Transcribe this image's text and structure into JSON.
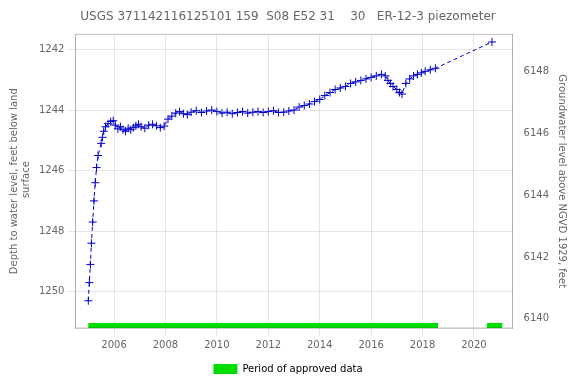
{
  "chart_data": {
    "type": "line",
    "title": "USGS 371142116125101 159  S08 E52 31    30   ER-12-3 piezometer",
    "ylabel": "Depth to water level, feet below land\n surface",
    "y2label": "Groundwater level above NGVD 1929, feet",
    "xlim": [
      2004.5,
      2021.5
    ],
    "xticks": [
      2006,
      2008,
      2010,
      2012,
      2014,
      2016,
      2018,
      2020
    ],
    "ylim": [
      1251.2,
      1241.5
    ],
    "yticks": [
      1242,
      1244,
      1246,
      1248,
      1250
    ],
    "y2lim": [
      6139.7,
      6149.2
    ],
    "y2ticks": [
      6140,
      6142,
      6144,
      6146,
      6148
    ],
    "grid": true,
    "legend": "bottom",
    "x": [
      2005.0,
      2005.04,
      2005.08,
      2005.12,
      2005.17,
      2005.22,
      2005.27,
      2005.32,
      2005.38,
      2005.5,
      2005.55,
      2005.6,
      2005.67,
      2005.77,
      2005.87,
      2005.97,
      2006.05,
      2006.15,
      2006.25,
      2006.35,
      2006.45,
      2006.55,
      2006.65,
      2006.75,
      2006.85,
      2006.95,
      2007.05,
      2007.2,
      2007.35,
      2007.5,
      2007.65,
      2007.8,
      2007.95,
      2008.1,
      2008.25,
      2008.4,
      2008.55,
      2008.7,
      2008.85,
      2009.0,
      2009.2,
      2009.4,
      2009.6,
      2009.8,
      2010.0,
      2010.2,
      2010.4,
      2010.6,
      2010.8,
      2011.0,
      2011.2,
      2011.4,
      2011.6,
      2011.8,
      2012.0,
      2012.2,
      2012.4,
      2012.6,
      2012.8,
      2013.0,
      2013.2,
      2013.4,
      2013.6,
      2013.8,
      2014.0,
      2014.2,
      2014.4,
      2014.6,
      2014.8,
      2015.0,
      2015.2,
      2015.4,
      2015.6,
      2015.8,
      2016.0,
      2016.2,
      2016.4,
      2016.55,
      2016.65,
      2016.75,
      2016.85,
      2017.0,
      2017.1,
      2017.2,
      2017.35,
      2017.5,
      2017.65,
      2017.8,
      2017.95,
      2018.1,
      2018.3,
      2018.5,
      2020.7
    ],
    "series": [
      {
        "color": "#0000cc",
        "line_style": "dashed",
        "marker": "plus",
        "values": [
          1250.3,
          1249.7,
          1249.1,
          1248.4,
          1247.7,
          1247.0,
          1246.4,
          1245.9,
          1245.5,
          1245.1,
          1244.9,
          1244.7,
          1244.55,
          1244.45,
          1244.38,
          1244.35,
          1244.5,
          1244.62,
          1244.55,
          1244.65,
          1244.7,
          1244.6,
          1244.65,
          1244.58,
          1244.52,
          1244.47,
          1244.55,
          1244.6,
          1244.5,
          1244.47,
          1244.52,
          1244.58,
          1244.53,
          1244.3,
          1244.2,
          1244.1,
          1244.05,
          1244.12,
          1244.15,
          1244.07,
          1244.02,
          1244.08,
          1244.03,
          1244.0,
          1244.05,
          1244.1,
          1244.07,
          1244.12,
          1244.08,
          1244.05,
          1244.1,
          1244.07,
          1244.05,
          1244.08,
          1244.05,
          1244.02,
          1244.08,
          1244.07,
          1244.03,
          1244.0,
          1243.9,
          1243.85,
          1243.8,
          1243.72,
          1243.65,
          1243.52,
          1243.42,
          1243.32,
          1243.27,
          1243.22,
          1243.12,
          1243.07,
          1243.02,
          1242.97,
          1242.92,
          1242.87,
          1242.82,
          1242.87,
          1243.02,
          1243.12,
          1243.22,
          1243.32,
          1243.42,
          1243.47,
          1243.12,
          1242.97,
          1242.87,
          1242.82,
          1242.77,
          1242.72,
          1242.67,
          1242.62,
          1241.75
        ]
      }
    ],
    "approved_periods": {
      "name": "Period of approved data",
      "color": "#00dd00",
      "segments": [
        [
          2005.0,
          2018.6
        ],
        [
          2020.5,
          2021.1
        ]
      ]
    }
  }
}
